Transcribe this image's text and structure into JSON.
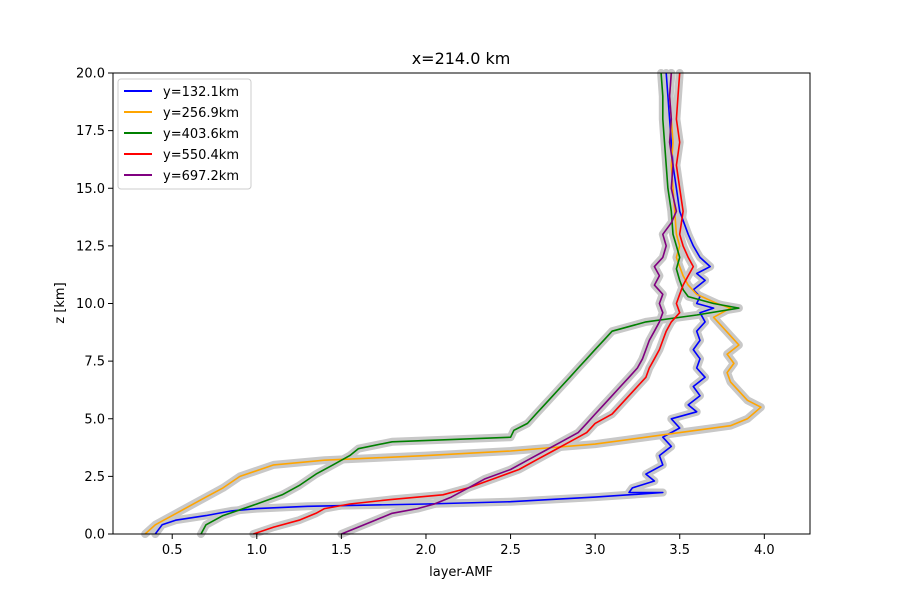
{
  "chart_data": {
    "type": "line",
    "title": "x=214.0 km",
    "xlabel": "layer-AMF",
    "ylabel": "z [km]",
    "xlim": [
      0.15,
      4.27
    ],
    "ylim": [
      0,
      20
    ],
    "xticks": [
      0.5,
      1.0,
      1.5,
      2.0,
      2.5,
      3.0,
      3.5,
      4.0
    ],
    "xtick_labels": [
      "0.5",
      "1.0",
      "1.5",
      "2.0",
      "2.5",
      "3.0",
      "3.5",
      "4.0"
    ],
    "yticks": [
      0.0,
      2.5,
      5.0,
      7.5,
      10.0,
      12.5,
      15.0,
      17.5,
      20.0
    ],
    "ytick_labels": [
      "0.0",
      "2.5",
      "5.0",
      "7.5",
      "10.0",
      "12.5",
      "15.0",
      "17.5",
      "20.0"
    ],
    "grid": false,
    "legend_position": "top-left",
    "uncertainty_band_color": "#c8c8c8",
    "series": [
      {
        "name": "y=132.1km",
        "color": "#0000ff",
        "points": [
          [
            0.4,
            0.0
          ],
          [
            0.44,
            0.4
          ],
          [
            0.52,
            0.6
          ],
          [
            0.7,
            0.8
          ],
          [
            0.85,
            1.0
          ],
          [
            1.0,
            1.1
          ],
          [
            1.3,
            1.2
          ],
          [
            2.0,
            1.3
          ],
          [
            2.5,
            1.4
          ],
          [
            3.0,
            1.6
          ],
          [
            3.4,
            1.8
          ],
          [
            3.2,
            1.8
          ],
          [
            3.22,
            2.0
          ],
          [
            3.35,
            2.3
          ],
          [
            3.3,
            2.6
          ],
          [
            3.4,
            3.0
          ],
          [
            3.38,
            3.4
          ],
          [
            3.45,
            3.8
          ],
          [
            3.4,
            4.2
          ],
          [
            3.5,
            4.6
          ],
          [
            3.45,
            5.0
          ],
          [
            3.6,
            5.3
          ],
          [
            3.55,
            5.6
          ],
          [
            3.62,
            6.0
          ],
          [
            3.58,
            6.4
          ],
          [
            3.65,
            6.8
          ],
          [
            3.6,
            7.2
          ],
          [
            3.62,
            7.6
          ],
          [
            3.58,
            8.0
          ],
          [
            3.62,
            8.4
          ],
          [
            3.6,
            8.8
          ],
          [
            3.65,
            9.2
          ],
          [
            3.62,
            9.6
          ],
          [
            3.7,
            9.8
          ],
          [
            3.6,
            10.0
          ],
          [
            3.62,
            10.3
          ],
          [
            3.58,
            10.6
          ],
          [
            3.65,
            11.0
          ],
          [
            3.6,
            11.3
          ],
          [
            3.68,
            11.6
          ],
          [
            3.62,
            12.0
          ],
          [
            3.58,
            12.5
          ],
          [
            3.55,
            13.0
          ],
          [
            3.5,
            14.0
          ],
          [
            3.48,
            15.0
          ],
          [
            3.46,
            16.0
          ],
          [
            3.45,
            17.0
          ],
          [
            3.44,
            18.0
          ],
          [
            3.43,
            19.0
          ],
          [
            3.42,
            20.0
          ]
        ]
      },
      {
        "name": "y=256.9km",
        "color": "#ffa500",
        "points": [
          [
            0.34,
            0.0
          ],
          [
            0.4,
            0.4
          ],
          [
            0.55,
            1.0
          ],
          [
            0.7,
            1.6
          ],
          [
            0.8,
            2.0
          ],
          [
            0.9,
            2.5
          ],
          [
            1.1,
            3.0
          ],
          [
            1.4,
            3.2
          ],
          [
            2.0,
            3.4
          ],
          [
            2.5,
            3.6
          ],
          [
            3.0,
            3.9
          ],
          [
            3.5,
            4.4
          ],
          [
            3.8,
            4.7
          ],
          [
            3.9,
            5.0
          ],
          [
            3.98,
            5.5
          ],
          [
            3.9,
            5.8
          ],
          [
            3.85,
            6.2
          ],
          [
            3.8,
            6.6
          ],
          [
            3.78,
            7.0
          ],
          [
            3.82,
            7.4
          ],
          [
            3.78,
            7.8
          ],
          [
            3.85,
            8.2
          ],
          [
            3.8,
            8.6
          ],
          [
            3.75,
            9.0
          ],
          [
            3.7,
            9.4
          ],
          [
            3.8,
            9.8
          ],
          [
            3.72,
            10.0
          ],
          [
            3.6,
            10.4
          ],
          [
            3.55,
            10.8
          ],
          [
            3.52,
            11.2
          ],
          [
            3.5,
            11.6
          ],
          [
            3.48,
            12.0
          ],
          [
            3.5,
            12.5
          ],
          [
            3.48,
            13.0
          ],
          [
            3.47,
            14.0
          ],
          [
            3.46,
            15.0
          ],
          [
            3.45,
            16.0
          ],
          [
            3.46,
            17.0
          ],
          [
            3.45,
            18.0
          ],
          [
            3.44,
            19.0
          ],
          [
            3.45,
            20.0
          ]
        ]
      },
      {
        "name": "y=403.6km",
        "color": "#008000",
        "points": [
          [
            0.67,
            0.0
          ],
          [
            0.7,
            0.4
          ],
          [
            0.8,
            0.8
          ],
          [
            1.0,
            1.3
          ],
          [
            1.15,
            1.7
          ],
          [
            1.25,
            2.1
          ],
          [
            1.35,
            2.6
          ],
          [
            1.45,
            3.0
          ],
          [
            1.55,
            3.4
          ],
          [
            1.6,
            3.7
          ],
          [
            1.8,
            4.0
          ],
          [
            2.5,
            4.2
          ],
          [
            2.52,
            4.5
          ],
          [
            2.6,
            4.8
          ],
          [
            2.65,
            5.2
          ],
          [
            2.7,
            5.6
          ],
          [
            2.75,
            6.0
          ],
          [
            2.8,
            6.4
          ],
          [
            2.85,
            6.8
          ],
          [
            2.9,
            7.2
          ],
          [
            2.95,
            7.6
          ],
          [
            3.0,
            8.0
          ],
          [
            3.05,
            8.4
          ],
          [
            3.1,
            8.8
          ],
          [
            3.3,
            9.2
          ],
          [
            3.6,
            9.5
          ],
          [
            3.85,
            9.8
          ],
          [
            3.7,
            10.0
          ],
          [
            3.55,
            10.3
          ],
          [
            3.52,
            10.6
          ],
          [
            3.5,
            11.0
          ],
          [
            3.48,
            11.5
          ],
          [
            3.5,
            12.0
          ],
          [
            3.48,
            12.5
          ],
          [
            3.46,
            13.0
          ],
          [
            3.45,
            14.0
          ],
          [
            3.43,
            15.0
          ],
          [
            3.42,
            16.0
          ],
          [
            3.41,
            17.0
          ],
          [
            3.4,
            18.0
          ],
          [
            3.4,
            19.0
          ],
          [
            3.39,
            20.0
          ]
        ]
      },
      {
        "name": "y=550.4km",
        "color": "#ff0000",
        "points": [
          [
            0.98,
            0.0
          ],
          [
            1.1,
            0.3
          ],
          [
            1.25,
            0.6
          ],
          [
            1.35,
            0.9
          ],
          [
            1.4,
            1.1
          ],
          [
            1.55,
            1.3
          ],
          [
            1.8,
            1.5
          ],
          [
            2.1,
            1.7
          ],
          [
            2.25,
            2.0
          ],
          [
            2.4,
            2.4
          ],
          [
            2.55,
            2.8
          ],
          [
            2.65,
            3.2
          ],
          [
            2.75,
            3.6
          ],
          [
            2.85,
            4.0
          ],
          [
            2.95,
            4.4
          ],
          [
            3.0,
            4.8
          ],
          [
            3.1,
            5.2
          ],
          [
            3.15,
            5.6
          ],
          [
            3.2,
            6.0
          ],
          [
            3.25,
            6.4
          ],
          [
            3.3,
            6.8
          ],
          [
            3.32,
            7.2
          ],
          [
            3.35,
            7.6
          ],
          [
            3.38,
            8.0
          ],
          [
            3.4,
            8.4
          ],
          [
            3.42,
            8.8
          ],
          [
            3.45,
            9.2
          ],
          [
            3.5,
            9.6
          ],
          [
            3.48,
            10.0
          ],
          [
            3.5,
            10.4
          ],
          [
            3.52,
            10.8
          ],
          [
            3.55,
            11.2
          ],
          [
            3.58,
            11.6
          ],
          [
            3.55,
            12.0
          ],
          [
            3.52,
            12.5
          ],
          [
            3.5,
            13.0
          ],
          [
            3.52,
            14.0
          ],
          [
            3.5,
            15.0
          ],
          [
            3.48,
            16.0
          ],
          [
            3.5,
            17.0
          ],
          [
            3.48,
            18.0
          ],
          [
            3.49,
            19.0
          ],
          [
            3.5,
            20.0
          ]
        ]
      },
      {
        "name": "y=697.2km",
        "color": "#800080",
        "points": [
          [
            1.5,
            0.0
          ],
          [
            1.6,
            0.3
          ],
          [
            1.7,
            0.6
          ],
          [
            1.8,
            0.9
          ],
          [
            1.95,
            1.1
          ],
          [
            2.05,
            1.3
          ],
          [
            2.15,
            1.6
          ],
          [
            2.25,
            2.0
          ],
          [
            2.35,
            2.4
          ],
          [
            2.5,
            2.8
          ],
          [
            2.6,
            3.2
          ],
          [
            2.7,
            3.6
          ],
          [
            2.8,
            4.0
          ],
          [
            2.9,
            4.4
          ],
          [
            2.95,
            4.8
          ],
          [
            3.0,
            5.2
          ],
          [
            3.05,
            5.6
          ],
          [
            3.1,
            6.0
          ],
          [
            3.15,
            6.4
          ],
          [
            3.2,
            6.8
          ],
          [
            3.25,
            7.2
          ],
          [
            3.28,
            7.6
          ],
          [
            3.3,
            8.0
          ],
          [
            3.32,
            8.4
          ],
          [
            3.35,
            8.8
          ],
          [
            3.38,
            9.2
          ],
          [
            3.4,
            9.6
          ],
          [
            3.38,
            10.0
          ],
          [
            3.4,
            10.4
          ],
          [
            3.35,
            10.8
          ],
          [
            3.38,
            11.2
          ],
          [
            3.35,
            11.6
          ],
          [
            3.4,
            12.0
          ],
          [
            3.42,
            12.5
          ],
          [
            3.4,
            13.0
          ],
          [
            3.45,
            13.5
          ],
          [
            3.48,
            14.0
          ],
          [
            3.45,
            15.0
          ],
          [
            3.46,
            16.0
          ],
          [
            3.44,
            17.0
          ],
          [
            3.45,
            18.0
          ],
          [
            3.44,
            19.0
          ],
          [
            3.45,
            20.0
          ]
        ]
      }
    ]
  }
}
